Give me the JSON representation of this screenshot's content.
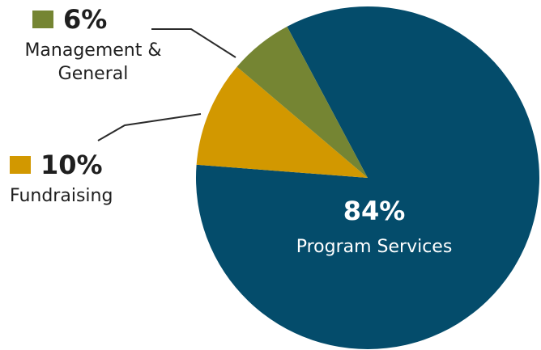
{
  "chart_data": {
    "type": "pie",
    "slices": [
      {
        "label": "Program Services",
        "value": 84,
        "value_label": "84%",
        "label_lines": [
          "Program Services"
        ],
        "color": "#044c6b",
        "text_color": "#ffffff",
        "swatch": false
      },
      {
        "label": "Fundraising",
        "value": 10,
        "value_label": "10%",
        "label_lines": [
          "Fundraising"
        ],
        "color": "#d29800",
        "text_color": "#1f1f1f",
        "swatch": true
      },
      {
        "label": "Management & General",
        "value": 6,
        "value_label": "6%",
        "label_lines": [
          "Management &",
          "General"
        ],
        "color": "#758533",
        "text_color": "#1f1f1f",
        "swatch": true
      }
    ],
    "title": "",
    "legend": "callout-labels"
  }
}
